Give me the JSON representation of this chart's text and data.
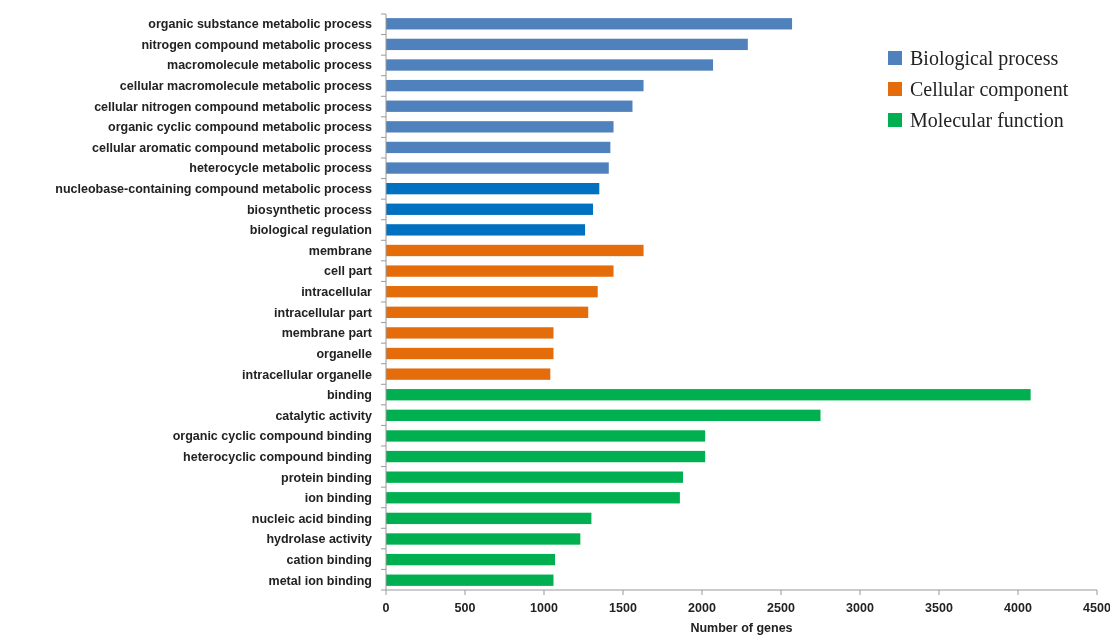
{
  "chart_data": {
    "type": "bar",
    "orientation": "horizontal",
    "xlabel": "Number of genes",
    "legend": "top right",
    "categories": [
      "organic substance metabolic process",
      "nitrogen compound metabolic process",
      "macromolecule metabolic process",
      "cellular macromolecule metabolic process",
      "cellular nitrogen compound metabolic process",
      "organic cyclic compound metabolic process",
      "cellular aromatic compound metabolic process",
      "heterocycle metabolic process",
      "nucleobase-containing compound metabolic process",
      "biosynthetic process",
      "biological regulation",
      "membrane",
      "cell part",
      "intracellular",
      "intracellular part",
      "membrane part",
      "organelle",
      "intracellular organelle",
      "binding",
      "catalytic activity",
      "organic cyclic compound binding",
      "heterocyclic compound binding",
      "protein binding",
      "ion binding",
      "nucleic acid binding",
      "hydrolase activity",
      "cation binding",
      "metal ion binding"
    ],
    "series": [
      {
        "name": "Biological process",
        "color": "#4f81bd",
        "colors": [
          "#4f81bd",
          "#4f81bd",
          "#4f81bd",
          "#4f81bd",
          "#4f81bd",
          "#4f81bd",
          "#4f81bd",
          "#4f81bd",
          "#0070c0",
          "#0070c0",
          "#0070c0",
          null,
          null,
          null,
          null,
          null,
          null,
          null,
          null,
          null,
          null,
          null,
          null,
          null,
          null,
          null,
          null,
          null
        ],
        "values": [
          2570,
          2290,
          2070,
          1630,
          1560,
          1440,
          1420,
          1410,
          1350,
          1310,
          1260,
          null,
          null,
          null,
          null,
          null,
          null,
          null,
          null,
          null,
          null,
          null,
          null,
          null,
          null,
          null,
          null,
          null
        ]
      },
      {
        "name": "Cellular component",
        "color": "#e46c0a",
        "values": [
          null,
          null,
          null,
          null,
          null,
          null,
          null,
          null,
          null,
          null,
          null,
          1630,
          1440,
          1340,
          1280,
          1060,
          1060,
          1040,
          null,
          null,
          null,
          null,
          null,
          null,
          null,
          null,
          null,
          null
        ]
      },
      {
        "name": "Molecular function",
        "color": "#00b050",
        "values": [
          null,
          null,
          null,
          null,
          null,
          null,
          null,
          null,
          null,
          null,
          null,
          null,
          null,
          null,
          null,
          null,
          null,
          null,
          4080,
          2750,
          2020,
          2020,
          1880,
          1860,
          1300,
          1230,
          1070,
          1060
        ]
      }
    ],
    "xlim": [
      0,
      4500
    ],
    "xticks": [
      0,
      500,
      1000,
      1500,
      2000,
      2500,
      3000,
      3500,
      4000,
      4500
    ]
  }
}
